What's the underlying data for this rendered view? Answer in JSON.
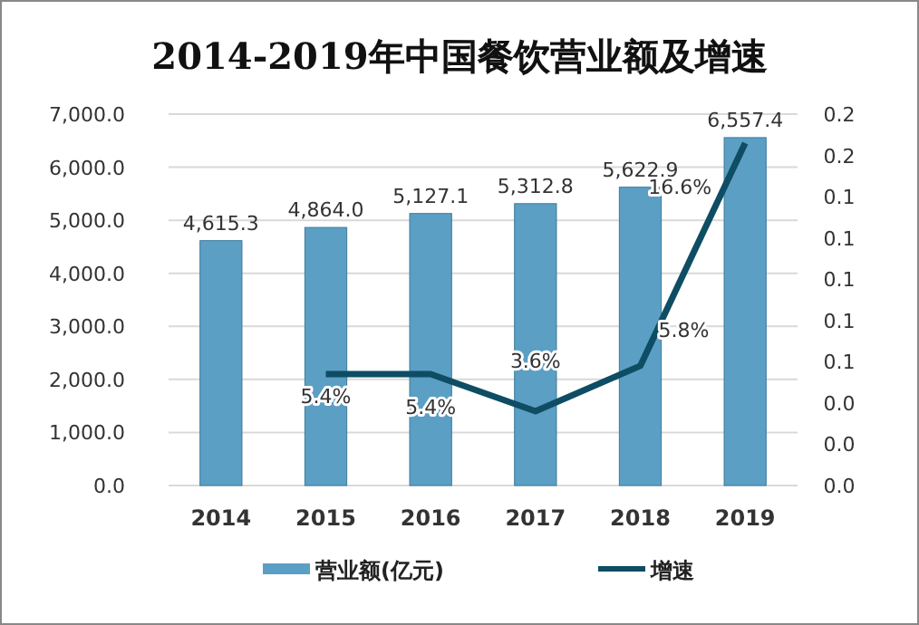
{
  "chart_data": {
    "type": "bar",
    "title": "2014-2019年中国餐饮营业额及增速",
    "categories": [
      "2014",
      "2015",
      "2016",
      "2017",
      "2018",
      "2019"
    ],
    "series": [
      {
        "name": "营业额(亿元)",
        "color": "#5b9fc4",
        "values": [
          4615.3,
          4864.0,
          5127.1,
          5312.8,
          5622.9,
          6557.4
        ],
        "value_labels": [
          "4,615.3",
          "4,864.0",
          "5,127.1",
          "5,312.8",
          "5,622.9",
          "6,557.4"
        ]
      },
      {
        "name": "增速",
        "type": "line",
        "axis": "y2",
        "color": "#0e4d64",
        "values": [
          null,
          0.054,
          0.054,
          0.036,
          0.058,
          0.166
        ],
        "value_labels": [
          null,
          "5.4%",
          "5.4%",
          "3.6%",
          "5.8%",
          "16.6%"
        ]
      }
    ],
    "ylim": [
      0,
      7000
    ],
    "yticks": [
      {
        "value": 0,
        "label": "0.0"
      },
      {
        "value": 1000,
        "label": "1,000.0"
      },
      {
        "value": 2000,
        "label": "2,000.0"
      },
      {
        "value": 3000,
        "label": "3,000.0"
      },
      {
        "value": 4000,
        "label": "4,000.0"
      },
      {
        "value": 5000,
        "label": "5,000.0"
      },
      {
        "value": 6000,
        "label": "6,000.0"
      },
      {
        "value": 7000,
        "label": "7,000.0"
      }
    ],
    "y2lim": [
      0,
      0.18
    ],
    "y2ticks": [
      {
        "value": 0,
        "label": "0.0"
      },
      {
        "value": 0.02,
        "label": "0.0"
      },
      {
        "value": 0.04,
        "label": "0.0"
      },
      {
        "value": 0.06,
        "label": "0.1"
      },
      {
        "value": 0.08,
        "label": "0.1"
      },
      {
        "value": 0.1,
        "label": "0.1"
      },
      {
        "value": 0.12,
        "label": "0.1"
      },
      {
        "value": 0.14,
        "label": "0.1"
      },
      {
        "value": 0.16,
        "label": "0.2"
      },
      {
        "value": 0.18,
        "label": "0.2"
      }
    ],
    "legend": "bottom",
    "grid": "y",
    "marker": "none",
    "line_style": "solid"
  }
}
